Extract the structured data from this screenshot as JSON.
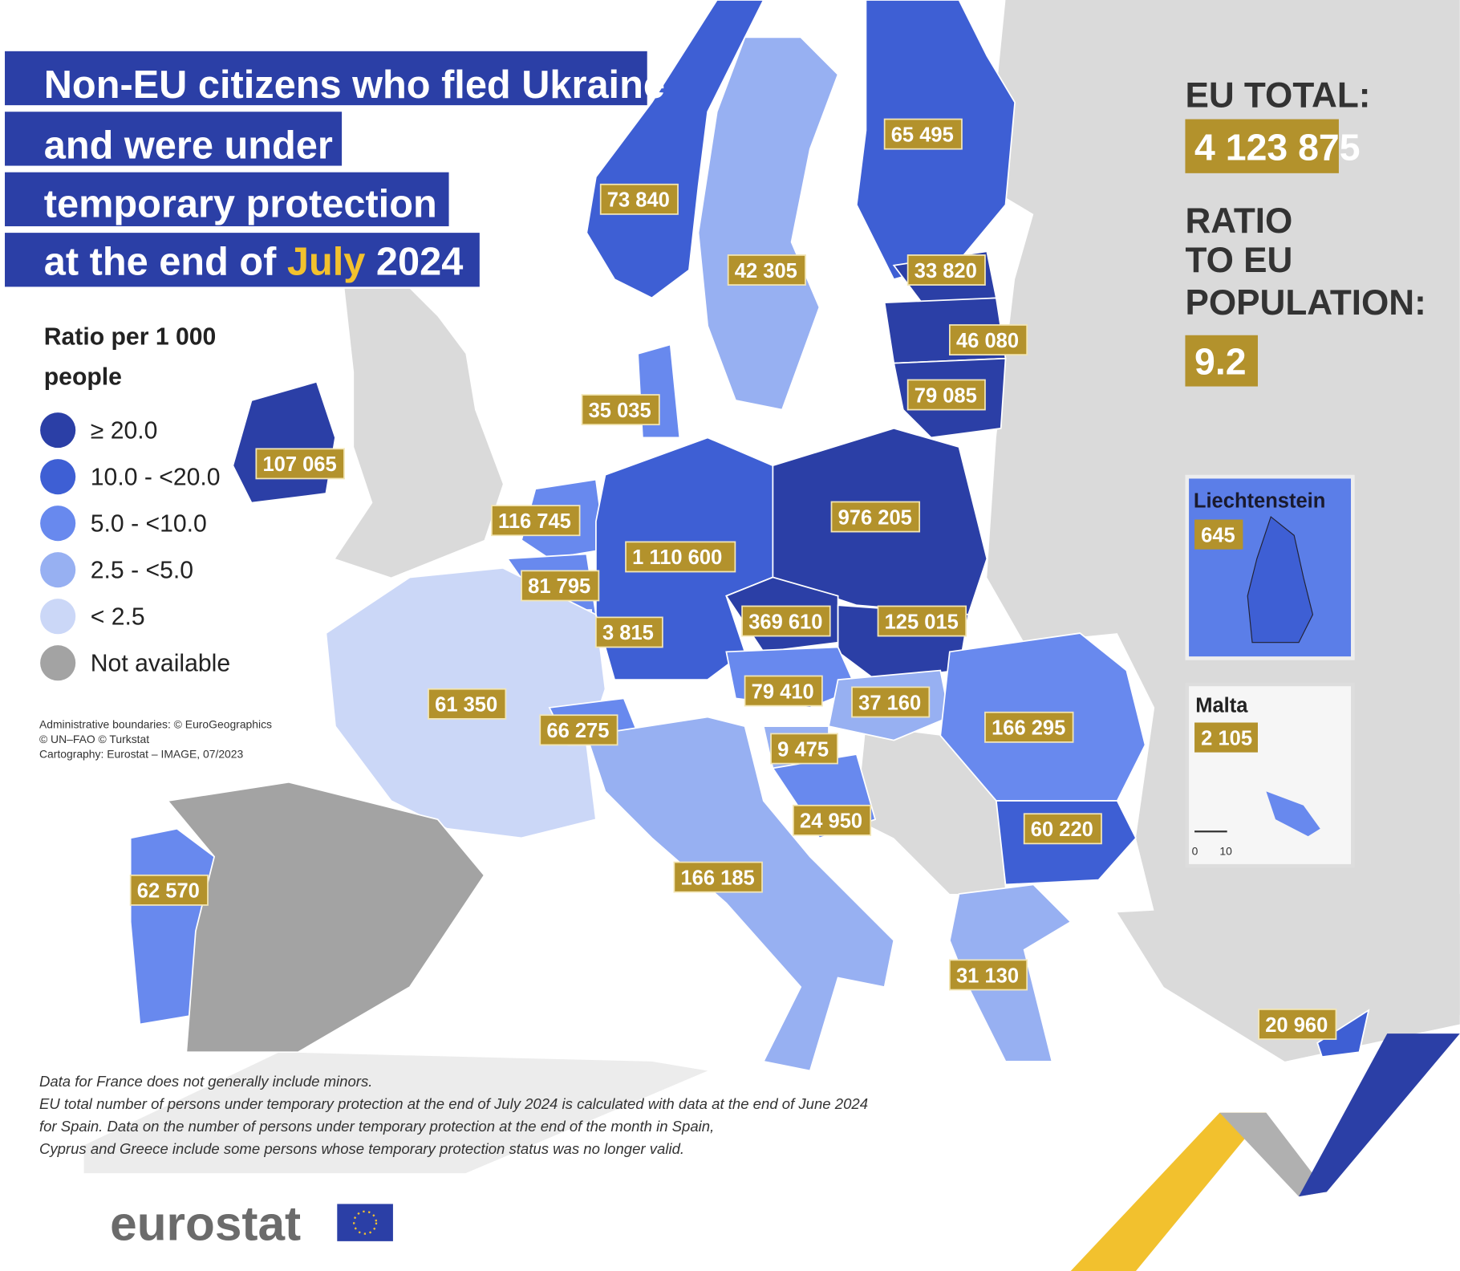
{
  "title": {
    "line1": "Non-EU citizens who fled Ukraine",
    "line2": "and were under",
    "line3": "temporary protection",
    "line4_prefix": "at the end of ",
    "line4_month": "July",
    "line4_year": " 2024"
  },
  "legend": {
    "title_line1": "Ratio per 1 000",
    "title_line2": "people",
    "classes": [
      {
        "label": "≥ 20.0",
        "color": "#2b3fa6"
      },
      {
        "label": "10.0 - <20.0",
        "color": "#3e5fd4"
      },
      {
        "label": "5.0 - <10.0",
        "color": "#6889ee"
      },
      {
        "label": "2.5 - <5.0",
        "color": "#97b0f2"
      },
      {
        "label": "< 2.5",
        "color": "#cbd7f7"
      },
      {
        "label": "Not available",
        "color": "#a3a3a3"
      }
    ]
  },
  "credits": [
    "Administrative boundaries: © EuroGeographics",
    "© UN–FAO © Turkstat",
    "Cartography: Eurostat – IMAGE, 07/2023"
  ],
  "summary": {
    "eu_total_label": "EU TOTAL:",
    "eu_total_value": "4 123 875",
    "ratio_label_1": "RATIO",
    "ratio_label_2": "TO EU",
    "ratio_label_3": "POPULATION:",
    "ratio_value": "9.2"
  },
  "countries": [
    {
      "name": "Norway",
      "value": "73 840",
      "class": 1
    },
    {
      "name": "Sweden",
      "value": "42 305",
      "class": 3
    },
    {
      "name": "Finland",
      "value": "65 495",
      "class": 1
    },
    {
      "name": "Estonia",
      "value": "33 820",
      "class": 0
    },
    {
      "name": "Latvia",
      "value": "46 080",
      "class": 0
    },
    {
      "name": "Lithuania",
      "value": "79 085",
      "class": 0
    },
    {
      "name": "Denmark",
      "value": "35 035",
      "class": 2
    },
    {
      "name": "Ireland",
      "value": "107 065",
      "class": 0
    },
    {
      "name": "Netherlands",
      "value": "116 745",
      "class": 2
    },
    {
      "name": "Belgium",
      "value": "81 795",
      "class": 2
    },
    {
      "name": "Luxembourg",
      "value": "3 815",
      "class": 2
    },
    {
      "name": "Germany",
      "value": "1 110 600",
      "class": 1
    },
    {
      "name": "Poland",
      "value": "976 205",
      "class": 0
    },
    {
      "name": "Czechia",
      "value": "369 610",
      "class": 0
    },
    {
      "name": "Slovakia",
      "value": "125 015",
      "class": 0
    },
    {
      "name": "Austria",
      "value": "79 410",
      "class": 2
    },
    {
      "name": "Hungary",
      "value": "37 160",
      "class": 3
    },
    {
      "name": "Romania",
      "value": "166 295",
      "class": 2
    },
    {
      "name": "France",
      "value": "61 350",
      "class": 4
    },
    {
      "name": "Switzerland",
      "value": "66 275",
      "class": 2
    },
    {
      "name": "Slovenia",
      "value": "9 475",
      "class": 3
    },
    {
      "name": "Croatia",
      "value": "24 950",
      "class": 2
    },
    {
      "name": "Bulgaria",
      "value": "60 220",
      "class": 1
    },
    {
      "name": "Portugal",
      "value": "62 570",
      "class": 2
    },
    {
      "name": "Italy",
      "value": "166 185",
      "class": 3
    },
    {
      "name": "Greece",
      "value": "31 130",
      "class": 3
    },
    {
      "name": "Cyprus",
      "value": "20 960",
      "class": 1
    },
    {
      "name": "Spain",
      "value": "",
      "class": 5
    }
  ],
  "insets": [
    {
      "name": "Liechtenstein",
      "value": "645"
    },
    {
      "name": "Malta",
      "value": "2 105",
      "scale": [
        "0",
        "10"
      ]
    }
  ],
  "notes": [
    "Data for France does not generally include minors.",
    "EU total number of persons under temporary protection at the end of July 2024 is calculated with data at the end of June 2024",
    "for Spain. Data on the number of persons under temporary protection at the end of the month in Spain,",
    "Cyprus and Greece include some persons whose temporary protection status was no longer valid."
  ],
  "logo": "eurostat",
  "colors": {
    "title_bg": "#2b3fa6",
    "label_bg": "#b3922c",
    "accent_yellow": "#f2c12e",
    "non_eu": "#dadada",
    "sea": "#ffffff"
  }
}
